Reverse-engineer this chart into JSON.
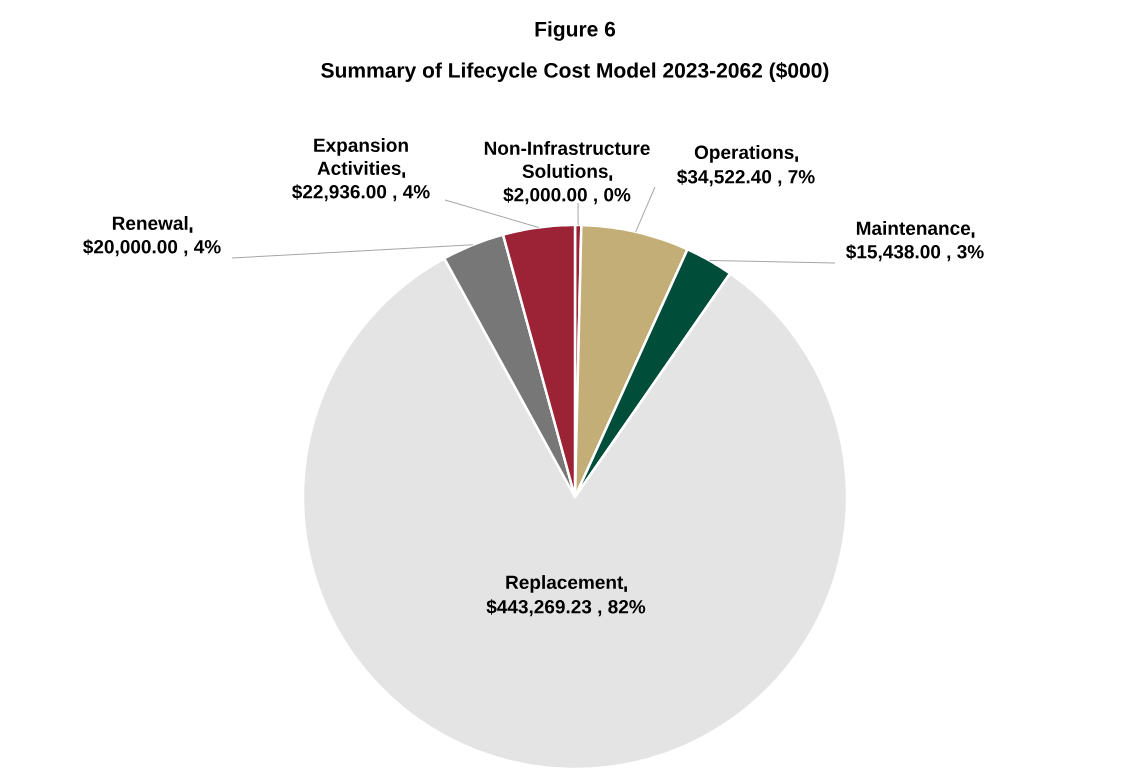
{
  "chart_data": {
    "type": "pie",
    "title": "Figure 6",
    "subtitle": "Summary of Lifecycle Cost Model 2023-2062 ($000)",
    "categories": [
      "Non-Infrastructure Solutions",
      "Operations",
      "Maintenance",
      "Replacement",
      "Renewal",
      "Expansion Activities"
    ],
    "values": [
      2000.0,
      34522.4,
      15438.0,
      443269.23,
      20000.0,
      22936.0
    ],
    "colors": [
      "#9b2335",
      "#c4ae78",
      "#004d3a",
      "#e4e4e4",
      "#777777",
      "#9b2335"
    ],
    "value_labels": [
      "$2,000.00 , 0%",
      "$34,522.40 , 7%",
      "$15,438.00 , 3%",
      "$443,269.23 , 82%",
      "$20,000.00 , 4%",
      "$22,936.00 , 4%"
    ]
  }
}
